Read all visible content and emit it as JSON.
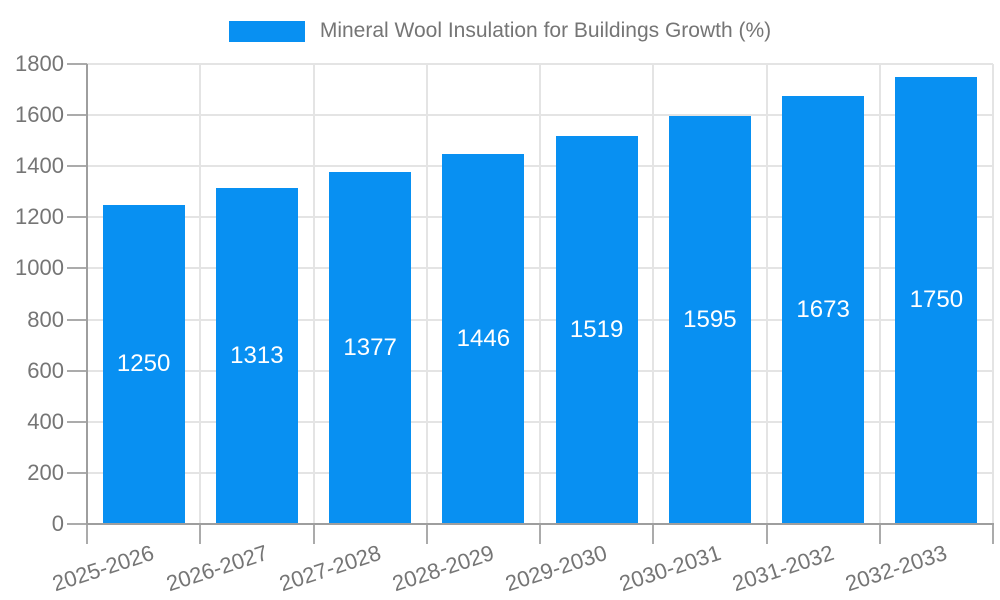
{
  "legend": {
    "label": "Mineral Wool Insulation for Buildings Growth (%)"
  },
  "chart_data": {
    "type": "bar",
    "title": "Mineral Wool Insulation for Buildings Growth (%)",
    "categories": [
      "2025-2026",
      "2026-2027",
      "2027-2028",
      "2028-2029",
      "2029-2030",
      "2030-2031",
      "2031-2032",
      "2032-2033"
    ],
    "series": [
      {
        "name": "Mineral Wool Insulation for Buildings Growth (%)",
        "values": [
          1250,
          1313,
          1377,
          1446,
          1519,
          1595,
          1673,
          1750
        ]
      }
    ],
    "value_labels": [
      "1250",
      "1313",
      "1377",
      "1446",
      "1519",
      "1595",
      "1673",
      "1750"
    ],
    "xlabel": "",
    "ylabel": "",
    "ylim": [
      0,
      1800
    ],
    "y_tick_step": 200,
    "y_tick_labels": [
      "0",
      "200",
      "400",
      "600",
      "800",
      "1000",
      "1200",
      "1400",
      "1600",
      "1800"
    ],
    "grid": true,
    "legend_position": "top-center",
    "x_label_rotation_deg": -18,
    "value_label_position": "inside-center"
  },
  "colors": {
    "bar": "#0890f2",
    "background": "#ffffff",
    "axis_line": "#9e9e9e",
    "tick": "#ababab",
    "gridline": "#e4e4e4",
    "text": "#757575",
    "bar_value_label": "#ffffff"
  }
}
